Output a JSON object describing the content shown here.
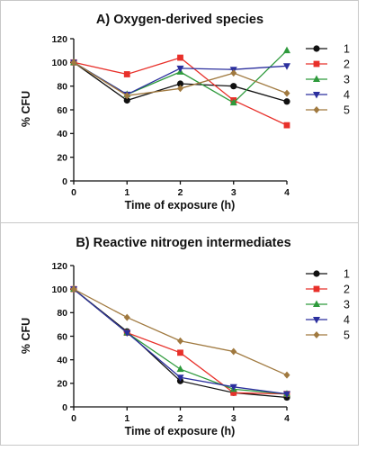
{
  "chart_data": [
    {
      "type": "line",
      "title": "A) Oxygen-derived species",
      "xlabel": "Time of exposure  (h)",
      "ylabel": "% CFU",
      "xlim": [
        0,
        4
      ],
      "ylim": [
        0,
        120
      ],
      "x_ticks": [
        "0",
        "1",
        "2",
        "3",
        "4"
      ],
      "y_ticks": [
        "0",
        "20",
        "40",
        "60",
        "80",
        "100",
        "120"
      ],
      "grid": false,
      "legend": "right",
      "x": [
        0,
        1,
        2,
        3,
        4
      ],
      "series": [
        {
          "name": "1",
          "color": "#111111",
          "marker": "circle",
          "values": [
            100,
            68,
            82,
            80,
            67
          ]
        },
        {
          "name": "2",
          "color": "#e8302a",
          "marker": "square",
          "values": [
            100,
            90,
            104,
            68,
            47
          ]
        },
        {
          "name": "3",
          "color": "#2e9a3c",
          "marker": "triangle-up",
          "values": [
            100,
            73,
            92,
            66,
            110
          ]
        },
        {
          "name": "4",
          "color": "#2b2f9e",
          "marker": "triangle-down",
          "values": [
            100,
            73,
            95,
            94,
            97
          ]
        },
        {
          "name": "5",
          "color": "#a0793f",
          "marker": "diamond",
          "values": [
            100,
            72,
            78,
            91,
            74
          ]
        }
      ]
    },
    {
      "type": "line",
      "title": "B) Reactive nitrogen intermediates",
      "xlabel": "Time of exposure  (h)",
      "ylabel": "% CFU",
      "xlim": [
        0,
        4
      ],
      "ylim": [
        0,
        120
      ],
      "x_ticks": [
        "0",
        "1",
        "2",
        "3",
        "4"
      ],
      "y_ticks": [
        "0",
        "20",
        "40",
        "60",
        "80",
        "100",
        "120"
      ],
      "grid": false,
      "legend": "right",
      "x": [
        0,
        1,
        2,
        3,
        4
      ],
      "series": [
        {
          "name": "1",
          "color": "#111111",
          "marker": "circle",
          "values": [
            100,
            64,
            22,
            12,
            8
          ]
        },
        {
          "name": "2",
          "color": "#e8302a",
          "marker": "square",
          "values": [
            100,
            63,
            46,
            12,
            11
          ]
        },
        {
          "name": "3",
          "color": "#2e9a3c",
          "marker": "triangle-up",
          "values": [
            100,
            63,
            32,
            15,
            11
          ]
        },
        {
          "name": "4",
          "color": "#2b2f9e",
          "marker": "triangle-down",
          "values": [
            100,
            63,
            25,
            17,
            11
          ]
        },
        {
          "name": "5",
          "color": "#a0793f",
          "marker": "diamond",
          "values": [
            100,
            76,
            56,
            47,
            27
          ]
        }
      ]
    }
  ]
}
